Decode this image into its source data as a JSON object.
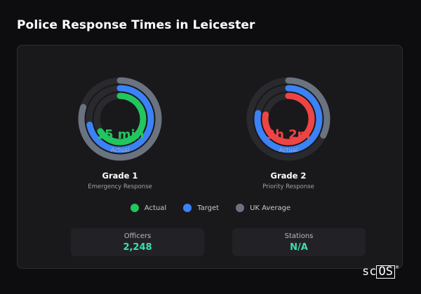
{
  "title": "Police Response Times in Leicester",
  "colors": {
    "actual": "#22c55e",
    "target": "#3b82f6",
    "uk_average": "#6b7280",
    "grade2_actual": "#ef4444",
    "track": "#2a2a2e",
    "stat_value": "#3ddfb1"
  },
  "gauges": [
    {
      "value": "15 min",
      "sublabel": "Actual",
      "title": "Grade 1",
      "subtitle": "Emergency Response",
      "value_color": "#22c55e",
      "levels": {
        "actual": 0.66,
        "target": 0.72,
        "uk_average": 0.8
      }
    },
    {
      "value": "3h 2m",
      "sublabel": "Actual",
      "title": "Grade 2",
      "subtitle": "Priority Response",
      "value_color": "#ef4444",
      "levels": {
        "actual": 0.78,
        "target": 0.78,
        "uk_average": 0.32
      }
    }
  ],
  "legend": [
    {
      "label": "Actual",
      "color": "#22c55e"
    },
    {
      "label": "Target",
      "color": "#3b82f6"
    },
    {
      "label": "UK Average",
      "color": "#6b7280"
    }
  ],
  "stats": [
    {
      "label": "Officers",
      "value": "2,248"
    },
    {
      "label": "Stations",
      "value": "N/A"
    }
  ],
  "logo": {
    "text_plain": "sc",
    "text_boxed": "OS",
    "mark": "®"
  }
}
